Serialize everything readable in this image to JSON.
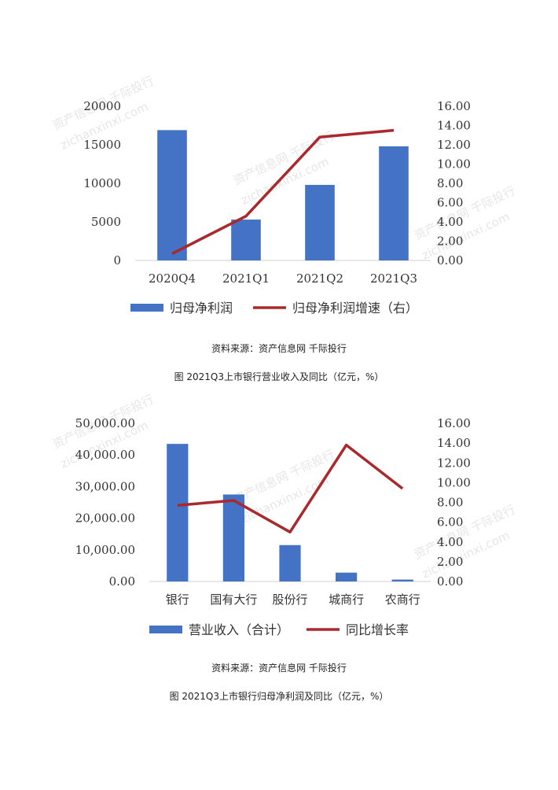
{
  "colors": {
    "bar": "#4472C4",
    "line": "#A9292D",
    "axis": "#d0d0d0"
  },
  "chart_data": [
    {
      "type": "bar",
      "categories": [
        "2020Q4",
        "2021Q1",
        "2021Q2",
        "2021Q3"
      ],
      "series": [
        {
          "name": "归母净利润",
          "type": "bar",
          "axis": "left",
          "values": [
            16900,
            5300,
            9800,
            14800
          ]
        },
        {
          "name": "归母净利润增速（右）",
          "type": "line",
          "axis": "right",
          "values": [
            0.7,
            4.6,
            12.8,
            13.5
          ]
        }
      ],
      "y_left": {
        "ticks": [
          "0",
          "5000",
          "10000",
          "15000",
          "20000"
        ],
        "lim": [
          0,
          20000
        ]
      },
      "y_right": {
        "ticks": [
          "0.00",
          "2.00",
          "4.00",
          "6.00",
          "8.00",
          "10.00",
          "12.00",
          "14.00",
          "16.00"
        ],
        "lim": [
          0,
          16
        ]
      },
      "legend_position": "bottom"
    },
    {
      "type": "bar",
      "categories": [
        "银行",
        "国有大行",
        "股份行",
        "城商行",
        "农商行"
      ],
      "series": [
        {
          "name": "营业收入（合计）",
          "type": "bar",
          "axis": "left",
          "values": [
            43500,
            27500,
            11500,
            2800,
            600
          ]
        },
        {
          "name": "同比增长率",
          "type": "line",
          "axis": "right",
          "values": [
            7.7,
            8.2,
            5.0,
            13.8,
            9.4
          ]
        }
      ],
      "y_left": {
        "ticks": [
          "0.00",
          "10,000.00",
          "20,000.00",
          "30,000.00",
          "40,000.00",
          "50,000.00"
        ],
        "lim": [
          0,
          50000
        ]
      },
      "y_right": {
        "ticks": [
          "0.00",
          "2.00",
          "4.00",
          "6.00",
          "8.00",
          "10.00",
          "12.00",
          "14.00",
          "16.00"
        ],
        "lim": [
          0,
          16
        ]
      },
      "legend_position": "bottom"
    }
  ],
  "captions": {
    "source1": "资料来源：资产信息网 千际投行",
    "title1": "图 2021Q3上市银行营业收入及同比（亿元，%）",
    "source2": "资料来源：资产信息网 千际投行",
    "title2": "图 2021Q3上市银行归母净利润及同比（亿元，%）"
  },
  "watermarks": [
    "资产信息网 千际投行",
    "zichanxinxi.com"
  ]
}
